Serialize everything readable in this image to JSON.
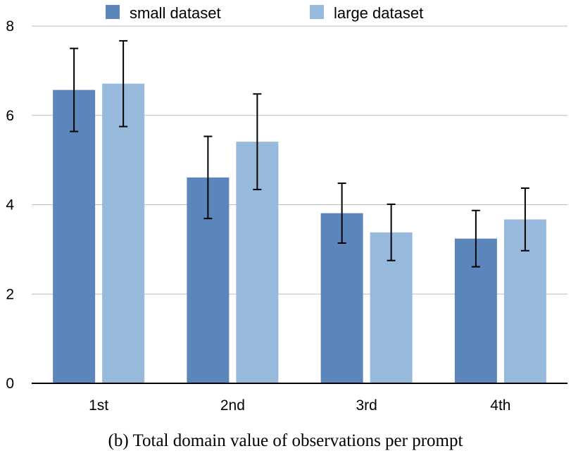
{
  "caption": "(b) Total domain value of observations per prompt",
  "colors": {
    "small": "#5b86bb",
    "large": "#97b9dc",
    "grid": "#bdbdbd",
    "axis": "#000000"
  },
  "chart_data": {
    "type": "bar",
    "categories": [
      "1st",
      "2nd",
      "3rd",
      "4th"
    ],
    "series": [
      {
        "name": "small dataset",
        "values": [
          6.57,
          4.61,
          3.81,
          3.24
        ],
        "error": [
          0.93,
          0.92,
          0.67,
          0.63
        ]
      },
      {
        "name": "large dataset",
        "values": [
          6.71,
          5.41,
          3.38,
          3.67
        ],
        "error": [
          0.96,
          1.07,
          0.63,
          0.7
        ]
      }
    ],
    "ylim": [
      0,
      8
    ],
    "yticks": [
      0,
      2,
      4,
      6,
      8
    ],
    "grid": true,
    "legend_position": "top-center",
    "title": "",
    "xlabel": "",
    "ylabel": ""
  }
}
